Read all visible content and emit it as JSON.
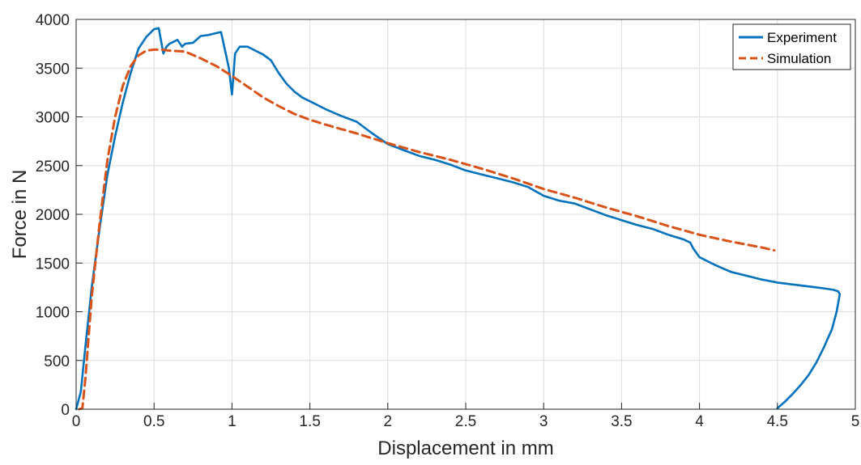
{
  "chart_data": {
    "type": "line",
    "title": "",
    "xlabel": "Displacement in mm",
    "ylabel": "Force in N",
    "xlim": [
      0,
      5
    ],
    "ylim": [
      0,
      4000
    ],
    "xticks": [
      0,
      0.5,
      1,
      1.5,
      2,
      2.5,
      3,
      3.5,
      4,
      4.5,
      5
    ],
    "xtick_labels": [
      "0",
      "0.5",
      "1",
      "1.5",
      "2",
      "2.5",
      "3",
      "3.5",
      "4",
      "4.5",
      "5"
    ],
    "yticks": [
      0,
      500,
      1000,
      1500,
      2000,
      2500,
      3000,
      3500,
      4000
    ],
    "ytick_labels": [
      "0",
      "500",
      "1000",
      "1500",
      "2000",
      "2500",
      "3000",
      "3500",
      "4000"
    ],
    "grid": true,
    "legend_position": "top-right",
    "series": [
      {
        "name": "Experiment",
        "color": "#0072BD",
        "style": "solid",
        "x": [
          0,
          0.03,
          0.06,
          0.1,
          0.15,
          0.2,
          0.25,
          0.3,
          0.35,
          0.4,
          0.45,
          0.5,
          0.53,
          0.56,
          0.58,
          0.6,
          0.65,
          0.68,
          0.7,
          0.75,
          0.8,
          0.85,
          0.9,
          0.93,
          0.96,
          0.98,
          1.0,
          1.02,
          1.05,
          1.1,
          1.15,
          1.2,
          1.25,
          1.3,
          1.35,
          1.4,
          1.45,
          1.5,
          1.6,
          1.7,
          1.8,
          1.9,
          2.0,
          2.1,
          2.2,
          2.3,
          2.4,
          2.5,
          2.6,
          2.7,
          2.8,
          2.9,
          3.0,
          3.1,
          3.2,
          3.3,
          3.4,
          3.5,
          3.6,
          3.7,
          3.8,
          3.9,
          3.94,
          3.96,
          4.0,
          4.1,
          4.2,
          4.3,
          4.4,
          4.5,
          4.6,
          4.7,
          4.8,
          4.86,
          4.89,
          4.9,
          4.88,
          4.85,
          4.8,
          4.75,
          4.7,
          4.65,
          4.6,
          4.55,
          4.5
        ],
        "y": [
          0,
          180,
          650,
          1250,
          1850,
          2400,
          2800,
          3150,
          3450,
          3700,
          3820,
          3900,
          3910,
          3650,
          3720,
          3750,
          3790,
          3720,
          3750,
          3760,
          3830,
          3840,
          3860,
          3870,
          3650,
          3500,
          3230,
          3650,
          3720,
          3720,
          3680,
          3640,
          3580,
          3450,
          3340,
          3260,
          3200,
          3160,
          3080,
          3010,
          2950,
          2830,
          2720,
          2660,
          2600,
          2560,
          2510,
          2450,
          2410,
          2370,
          2330,
          2280,
          2190,
          2140,
          2110,
          2050,
          1990,
          1940,
          1890,
          1850,
          1790,
          1740,
          1710,
          1650,
          1560,
          1480,
          1410,
          1370,
          1330,
          1300,
          1280,
          1260,
          1240,
          1225,
          1210,
          1180,
          1000,
          820,
          640,
          480,
          350,
          250,
          160,
          80,
          10
        ]
      },
      {
        "name": "Simulation",
        "color": "#D95319",
        "style": "dashed",
        "x": [
          0.02,
          0.04,
          0.06,
          0.1,
          0.15,
          0.2,
          0.25,
          0.3,
          0.35,
          0.4,
          0.45,
          0.5,
          0.55,
          0.6,
          0.7,
          0.8,
          0.9,
          1.0,
          1.1,
          1.2,
          1.3,
          1.4,
          1.5,
          1.6,
          1.8,
          2.0,
          2.2,
          2.4,
          2.6,
          2.8,
          3.0,
          3.2,
          3.4,
          3.6,
          3.8,
          4.0,
          4.2,
          4.4,
          4.48
        ],
        "y": [
          0,
          10,
          320,
          1150,
          1900,
          2550,
          3000,
          3320,
          3520,
          3630,
          3680,
          3690,
          3690,
          3680,
          3670,
          3600,
          3520,
          3420,
          3310,
          3200,
          3110,
          3030,
          2970,
          2920,
          2830,
          2730,
          2640,
          2560,
          2470,
          2370,
          2260,
          2170,
          2070,
          1980,
          1880,
          1790,
          1720,
          1660,
          1630
        ]
      }
    ]
  }
}
